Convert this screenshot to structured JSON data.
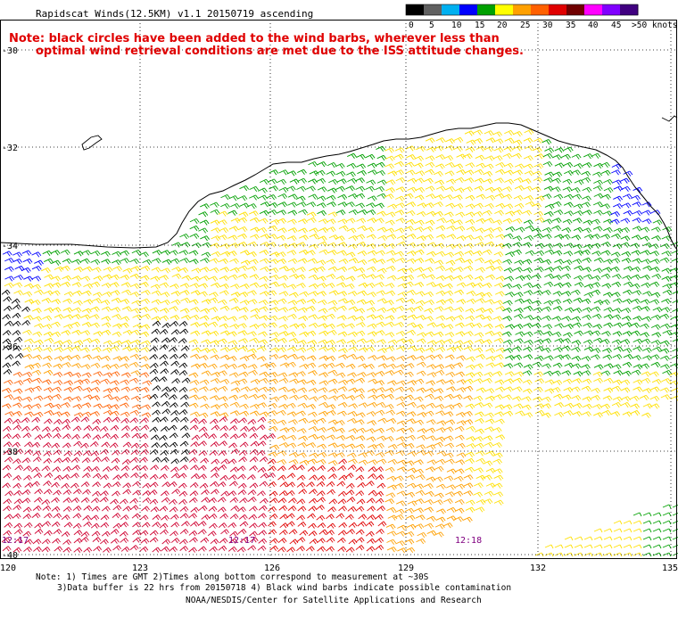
{
  "title": "Rapidscat Winds(12.5KM) v1.1 20150719 ascending",
  "note": {
    "line1": "Note: black circles have been added to the wind barbs, wherever less than",
    "line2": "optimal wind retrieval conditions are met due to the ISS attitude changes."
  },
  "legend": {
    "labels": [
      "0",
      "5",
      "10",
      "15",
      "20",
      "25",
      "30",
      "35",
      "40",
      "45",
      ">50 knots"
    ],
    "colors": [
      "#000000",
      "#606060",
      "#00b0f0",
      "#0000ff",
      "#00a000",
      "#ffff00",
      "#ffa000",
      "#ff6000",
      "#e00000",
      "#700000",
      "#ff00ff",
      "#8000ff",
      "#400080"
    ]
  },
  "lat_labels": [
    "-30",
    "-32",
    "-34",
    "-36",
    "-38",
    "-40"
  ],
  "lon_labels": [
    "120",
    "123",
    "126",
    "129",
    "132",
    "135"
  ],
  "time_labels": [
    "12:17",
    "12:17",
    "12:18"
  ],
  "footer": {
    "line1": "Note: 1) Times are GMT 2)Times along bottom correspond to measurement at ~30S",
    "line2": "3)Data buffer is 22 hrs from 20150718 4) Black wind barbs indicate possible contamination",
    "line3": "NOAA/NESDIS/Center for Satellite Applications and Research"
  },
  "colors": {
    "black": "#000000",
    "blue": "#0000ff",
    "green": "#00a000",
    "yellow": "#ffe000",
    "orange": "#ffa000",
    "orange_red": "#ff6000",
    "red": "#e00000",
    "crimson": "#d00030",
    "note_red": "#e00000",
    "time_label": "#800080"
  }
}
